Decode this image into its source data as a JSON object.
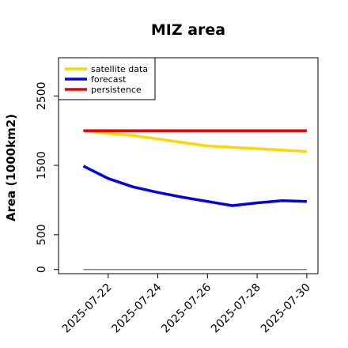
{
  "chart_data": {
    "type": "line",
    "title": "MIZ area",
    "ylabel": "Area (1000km2)",
    "xlabel": "",
    "x": [
      "2025-07-21",
      "2025-07-22",
      "2025-07-23",
      "2025-07-24",
      "2025-07-25",
      "2025-07-26",
      "2025-07-27",
      "2025-07-28",
      "2025-07-29",
      "2025-07-30"
    ],
    "xticks": [
      "2025-07-22",
      "2025-07-24",
      "2025-07-26",
      "2025-07-28",
      "2025-07-30"
    ],
    "xtick_colors": [
      "#228B22",
      "#000000",
      "#000000",
      "#000000",
      "#000000"
    ],
    "yticks": [
      0,
      500,
      1500,
      2500
    ],
    "ylim": [
      -60,
      3050
    ],
    "xlim": [
      "2025-07-20",
      "2025-07-30"
    ],
    "legend_position": "top-left",
    "series": [
      {
        "name": "satellite data",
        "color": "#FFD700",
        "values": [
          2000,
          1960,
          1930,
          1880,
          1830,
          1780,
          1760,
          1740,
          1720,
          1700
        ]
      },
      {
        "name": "forecast",
        "color": "#0000EE",
        "values": [
          1490,
          1310,
          1190,
          1110,
          1040,
          980,
          920,
          960,
          990,
          980
        ]
      },
      {
        "name": "persistence",
        "color": "#EE0000",
        "values": [
          2000,
          2000,
          2000,
          2000,
          2000,
          2000,
          2000,
          2000,
          2000,
          2000
        ]
      }
    ],
    "reference_line": {
      "color": "#808080",
      "value": 0
    }
  }
}
